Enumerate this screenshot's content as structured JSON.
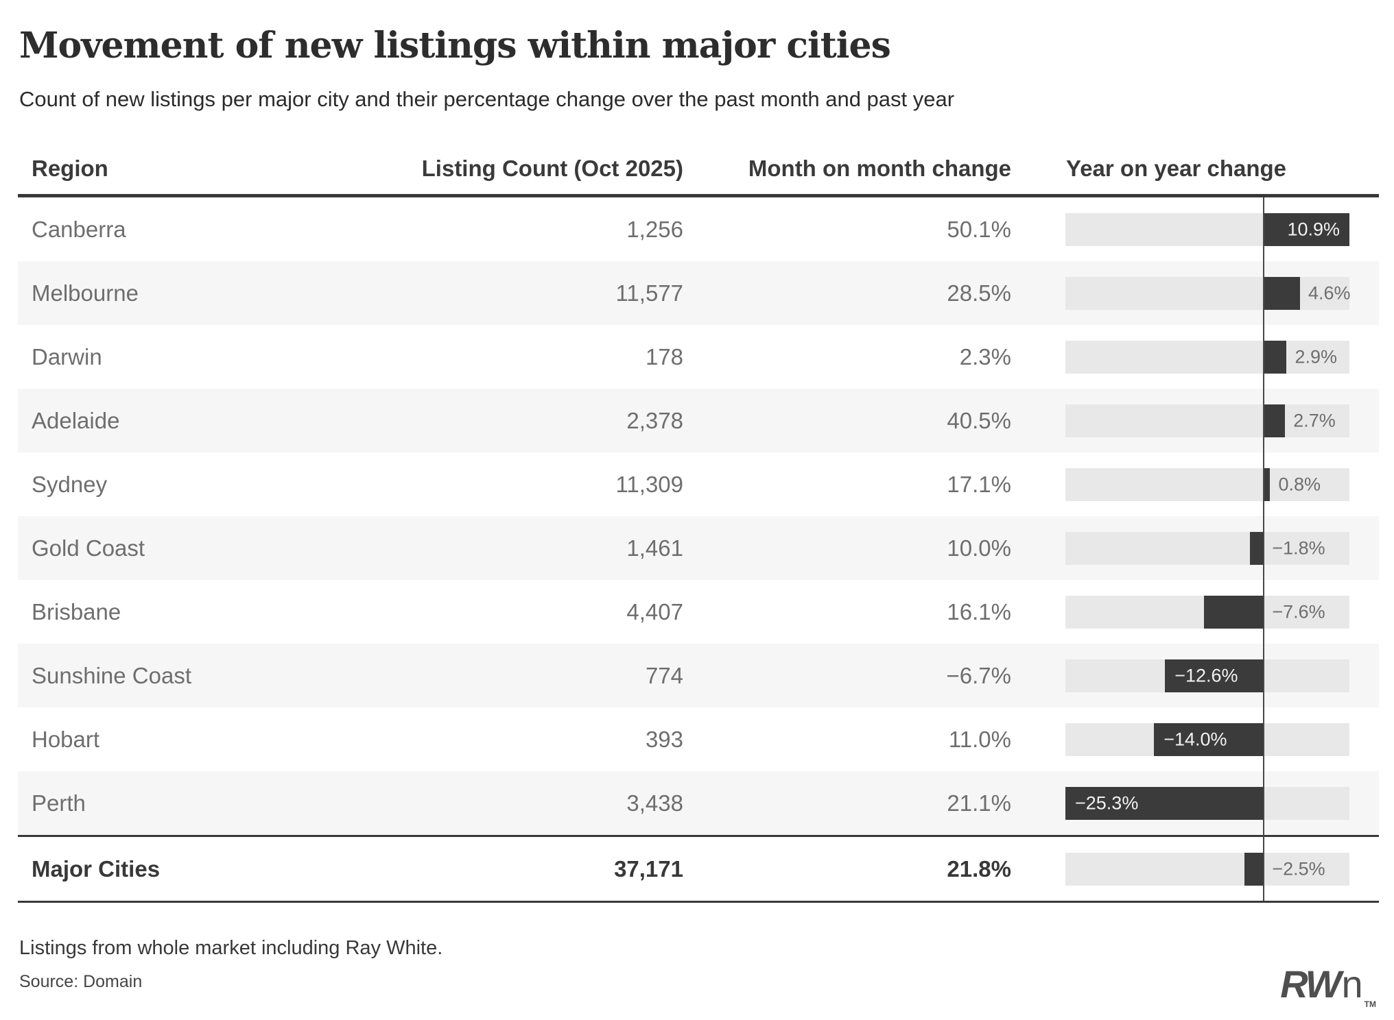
{
  "header": {
    "title": "Movement of new listings within major cities",
    "subtitle": "Count of new listings per major city and their percentage change over the past month and past year"
  },
  "chart_data": {
    "type": "table",
    "columns": [
      "Region",
      "Listing Count (Oct 2025)",
      "Month on month change",
      "Year on year change"
    ],
    "yoy_axis": {
      "min": -25.3,
      "max": 10.9,
      "zero_line": true
    },
    "colors": {
      "bar": "#3b3b3b",
      "track": "#e8e8e8",
      "row_band": "#f6f6f6",
      "zero_line": "#484848",
      "inside_label": "#f2f2f2",
      "outside_label": "#6e6e6e"
    },
    "rows": [
      {
        "region": "Canberra",
        "listing_count": "1,256",
        "mom_change": "50.1%",
        "yoy_value": 10.9,
        "yoy_label": "10.9%"
      },
      {
        "region": "Melbourne",
        "listing_count": "11,577",
        "mom_change": "28.5%",
        "yoy_value": 4.6,
        "yoy_label": "4.6%"
      },
      {
        "region": "Darwin",
        "listing_count": "178",
        "mom_change": "2.3%",
        "yoy_value": 2.9,
        "yoy_label": "2.9%"
      },
      {
        "region": "Adelaide",
        "listing_count": "2,378",
        "mom_change": "40.5%",
        "yoy_value": 2.7,
        "yoy_label": "2.7%"
      },
      {
        "region": "Sydney",
        "listing_count": "11,309",
        "mom_change": "17.1%",
        "yoy_value": 0.8,
        "yoy_label": "0.8%"
      },
      {
        "region": "Gold Coast",
        "listing_count": "1,461",
        "mom_change": "10.0%",
        "yoy_value": -1.8,
        "yoy_label": "−1.8%"
      },
      {
        "region": "Brisbane",
        "listing_count": "4,407",
        "mom_change": "16.1%",
        "yoy_value": -7.6,
        "yoy_label": "−7.6%"
      },
      {
        "region": "Sunshine Coast",
        "listing_count": "774",
        "mom_change": "−6.7%",
        "yoy_value": -12.6,
        "yoy_label": "−12.6%"
      },
      {
        "region": "Hobart",
        "listing_count": "393",
        "mom_change": "11.0%",
        "yoy_value": -14.0,
        "yoy_label": "−14.0%"
      },
      {
        "region": "Perth",
        "listing_count": "3,438",
        "mom_change": "21.1%",
        "yoy_value": -25.3,
        "yoy_label": "−25.3%"
      }
    ],
    "totals_row": {
      "region": "Major Cities",
      "listing_count": "37,171",
      "mom_change": "21.8%",
      "yoy_value": -2.5,
      "yoy_label": "−2.5%"
    }
  },
  "footer": {
    "note": "Listings from whole market including Ray White.",
    "source": "Source: Domain",
    "logo": {
      "bold_part": "RW",
      "light_part": "n",
      "tm": "TM"
    }
  }
}
